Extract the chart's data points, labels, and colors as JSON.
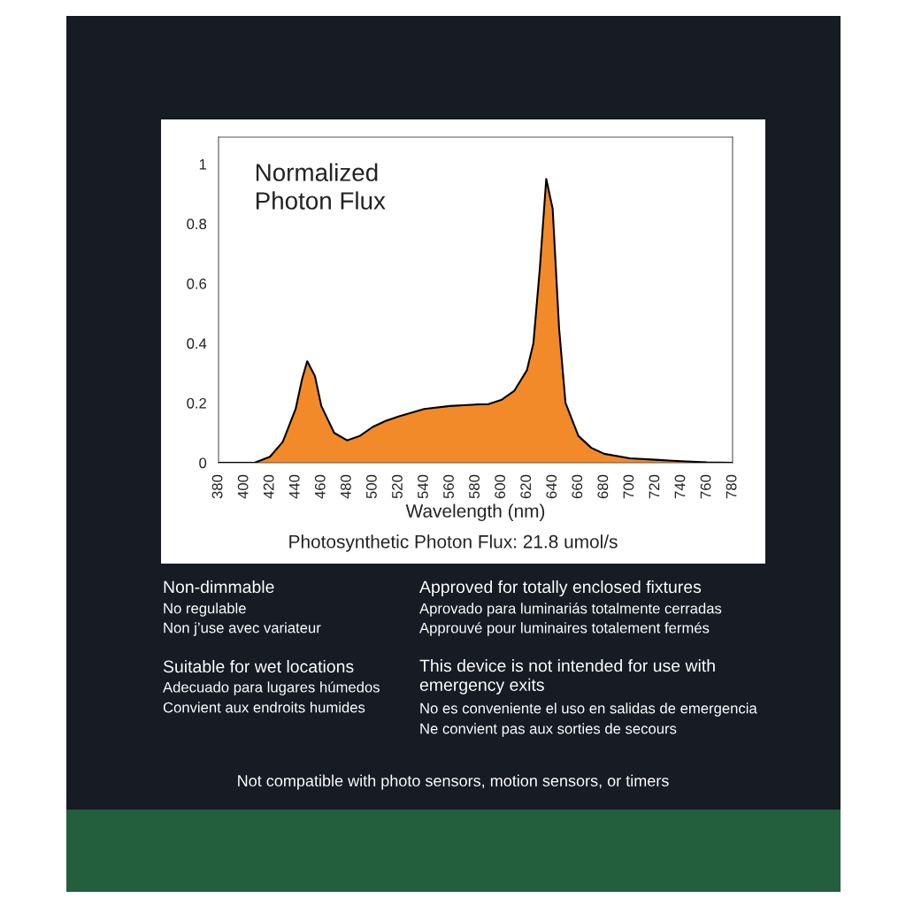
{
  "chart_data": {
    "type": "area",
    "title": "Normalized\nPhoton Flux",
    "xlabel": "Wavelength (nm)",
    "x": [
      380,
      408,
      420,
      430,
      440,
      445,
      449,
      455,
      460,
      470,
      480,
      490,
      500,
      510,
      520,
      540,
      560,
      580,
      590,
      600,
      610,
      620,
      625,
      630,
      635,
      640,
      645,
      650,
      660,
      670,
      680,
      700,
      720,
      740,
      760,
      780
    ],
    "series": [
      {
        "color": "#f28a2a",
        "values": [
          0,
          0,
          0.02,
          0.07,
          0.18,
          0.28,
          0.34,
          0.29,
          0.19,
          0.1,
          0.075,
          0.09,
          0.12,
          0.14,
          0.155,
          0.18,
          0.19,
          0.195,
          0.196,
          0.21,
          0.24,
          0.31,
          0.4,
          0.65,
          0.95,
          0.85,
          0.45,
          0.2,
          0.09,
          0.05,
          0.03,
          0.015,
          0.01,
          0.005,
          0.001,
          0
        ]
      }
    ],
    "xlim": [
      380,
      780
    ],
    "ylim": [
      0,
      1.09
    ],
    "xticks": [
      380,
      400,
      420,
      440,
      460,
      480,
      500,
      520,
      540,
      560,
      580,
      600,
      620,
      640,
      660,
      680,
      700,
      720,
      740,
      760,
      780
    ],
    "yticks": [
      0,
      0.2,
      0.4,
      0.6,
      0.8,
      1
    ],
    "grid": false,
    "legend": false,
    "annotations": [
      "Photosynthetic Photon Flux: 21.8 umol/s",
      "Non-dimmable",
      "No regulable",
      "Non j’use avec variateur",
      "Suitable for wet locations",
      "Adecuado para lugares húmedos",
      "Convient aux endroits humides",
      "Approved for totally enclosed fixtures",
      "Aprovado para luminariás totalmente cerradas",
      "Approuvé pour luminaires totalement fermés",
      "This device is not intended for use with\nemergency exits",
      "No es conveniente el uso en salidas de emergencia",
      "Ne convient pas aux sorties de secours",
      "Not compatible with photo sensors, motion sensors, or timers"
    ]
  }
}
